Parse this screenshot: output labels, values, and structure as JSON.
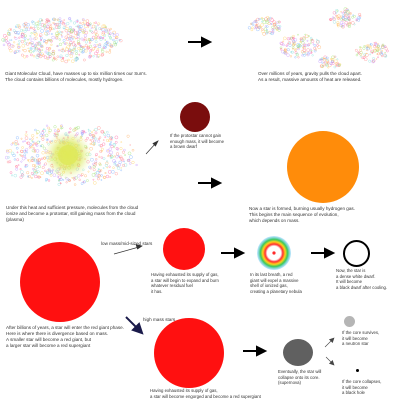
{
  "stages": {
    "cloud_caption": "Giant Molecular Cloud, have masses up to six million times our Sun's.\nThe cloud contains billions of molecules, mostly hydrogen.",
    "collapse_caption": "Over millions of years, gravity pulls the cloud apart.\nAs a result, massive amounts of heat are released.",
    "protostar_caption": "Under this heat and sufficient pressure, molecules from the cloud\nionize and become a protostar, still gaining mass from the cloud\n(plasma)",
    "brown_dwarf_caption": "If the protostar cannot gain\nenough mass, it will become\na brown dwarf",
    "main_sequence_caption": "Now a star is formed, burning usually hydrogen gas.\nThis begins the main sequence of evolution,\nwhich depends on mass.",
    "red_giant_caption": "After billions of years, a star will enter the red giant phase.\nHere is where there is divergence based on mass.\nA smaller star will become a red giant, but\na larger star will become a red supergiant",
    "low_mass_label": "low mass/mid-sized stars",
    "high_mass_label": "high mass stars",
    "expand_caption": "Having exhausted its supply of gas,\na star will begin to expand and burn\nwhatever residual fuel\nit has.",
    "nebula_caption": "In its last breath, a red\ngiant will expel a massive\nshell of ionized gas,\ncreating a planetary nebula",
    "white_dwarf_caption": "Now, the star is\na dense white dwarf.\nIt will become\na black dwarf after cooling.",
    "supergiant_caption": "Having exhausted its supply of gas,\na star will become engorged and become a red supergiant",
    "supernova_caption": "Eventually, the star will\ncollapse onto its core.\n(supernova)",
    "neutron_caption": "If the core survives,\nit will become\na neutron star",
    "black_hole_caption": "If the core collapses,\nit will become\na black hole"
  },
  "colors": {
    "brown_dwarf": "#7a0d0d",
    "main_sequence_star": "#ff8c0a",
    "red_giant": "#ff1010",
    "red_supergiant": "#ff1010",
    "core": "#606060",
    "neutron_star": "#b5b5b5",
    "black_hole": "#000000",
    "arrow_main": "#000000",
    "arrow_branch": "#1a1a4a"
  }
}
